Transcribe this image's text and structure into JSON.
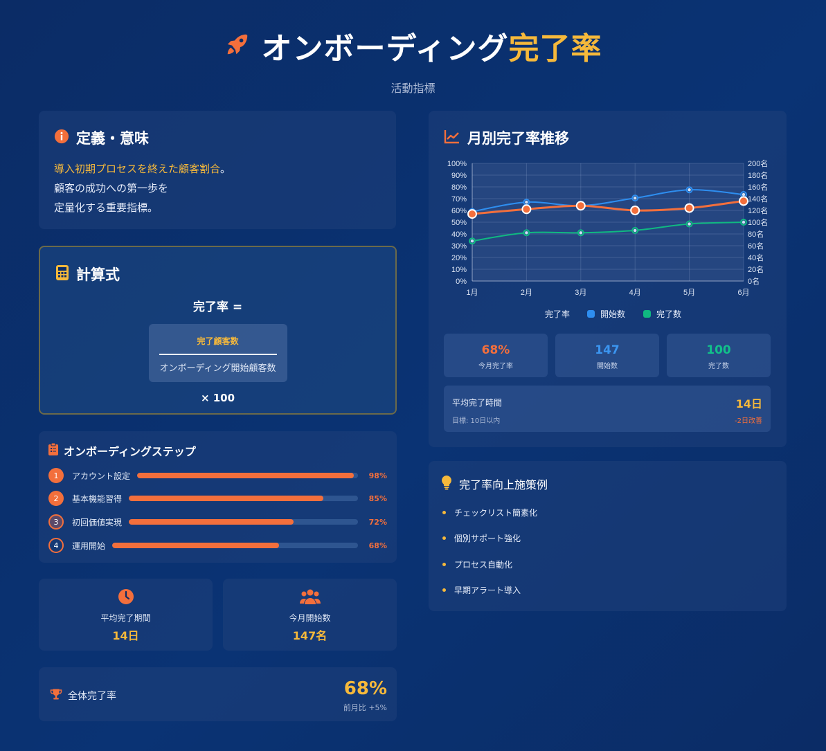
{
  "header": {
    "title_main": "オンボーディング",
    "title_highlight": "完了率",
    "subtitle": "活動指標"
  },
  "definition": {
    "heading": "定義・意味",
    "line1_highlight": "導入初期プロセスを終えた顧客割合",
    "line1_rest": "。",
    "line2": "顧客の成功への第一歩を",
    "line3": "定量化する重要指標。"
  },
  "formula": {
    "heading": "計算式",
    "label": "完了率 =",
    "numerator": "完了顧客数",
    "denominator": "オンボーディング開始顧客数",
    "multiplier": "× 100"
  },
  "steps": {
    "heading": "オンボーディングステップ",
    "items": [
      {
        "num": "1",
        "label": "アカウント設定",
        "percent_text": "98%",
        "value": 98
      },
      {
        "num": "2",
        "label": "基本機能習得",
        "percent_text": "85%",
        "value": 85
      },
      {
        "num": "3",
        "label": "初回価値実現",
        "percent_text": "72%",
        "value": 72
      },
      {
        "num": "4",
        "label": "運用開始",
        "percent_text": "68%",
        "value": 68
      }
    ]
  },
  "mini_stats": {
    "avg_period_label": "平均完了期間",
    "avg_period_value": "14日",
    "month_start_label": "今月開始数",
    "month_start_value": "147名"
  },
  "overall": {
    "label": "全体完了率",
    "value": "68%",
    "compare": "前月比 +5%"
  },
  "chart_card": {
    "heading": "月別完了率推移"
  },
  "chart_data": {
    "type": "line",
    "categories": [
      "1月",
      "2月",
      "3月",
      "4月",
      "5月",
      "6月"
    ],
    "y_left": {
      "ticks": [
        "0%",
        "10%",
        "20%",
        "30%",
        "40%",
        "50%",
        "60%",
        "70%",
        "80%",
        "90%",
        "100%"
      ],
      "range": [
        0,
        100
      ]
    },
    "y_right": {
      "ticks": [
        "0名",
        "20名",
        "40名",
        "60名",
        "80名",
        "100名",
        "120名",
        "140名",
        "160名",
        "180名",
        "200名"
      ],
      "range": [
        0,
        200
      ]
    },
    "series": [
      {
        "name": "完了率",
        "axis": "left",
        "color": "#f36f3c",
        "values": [
          57,
          61,
          64,
          60,
          62,
          68
        ]
      },
      {
        "name": "開始数",
        "axis": "right",
        "color": "#2e8ef0",
        "values": [
          118,
          134,
          128,
          141,
          155,
          147
        ]
      },
      {
        "name": "完了数",
        "axis": "right",
        "color": "#10b981",
        "values": [
          68,
          82,
          82,
          86,
          97,
          100
        ]
      }
    ],
    "legend_position": "bottom",
    "grid": true
  },
  "kpis": [
    {
      "value": "68%",
      "label": "今月完了率",
      "color": "#f36f3c"
    },
    {
      "value": "147",
      "label": "開始数",
      "color": "#3b95f0"
    },
    {
      "value": "100",
      "label": "完了数",
      "color": "#12c08a"
    }
  ],
  "avg_time": {
    "label": "平均完了時間",
    "value": "14日",
    "target": "目標: 10日以内",
    "improvement": "-2日改善"
  },
  "tips": {
    "heading": "完了率向上施策例",
    "items": [
      "チェックリスト簡素化",
      "個別サポート強化",
      "プロセス自動化",
      "早期アラート導入"
    ]
  },
  "colors": {
    "accent_orange": "#f36f3c",
    "accent_yellow": "#f6b93b",
    "blue": "#2e8ef0",
    "green": "#10b981"
  }
}
